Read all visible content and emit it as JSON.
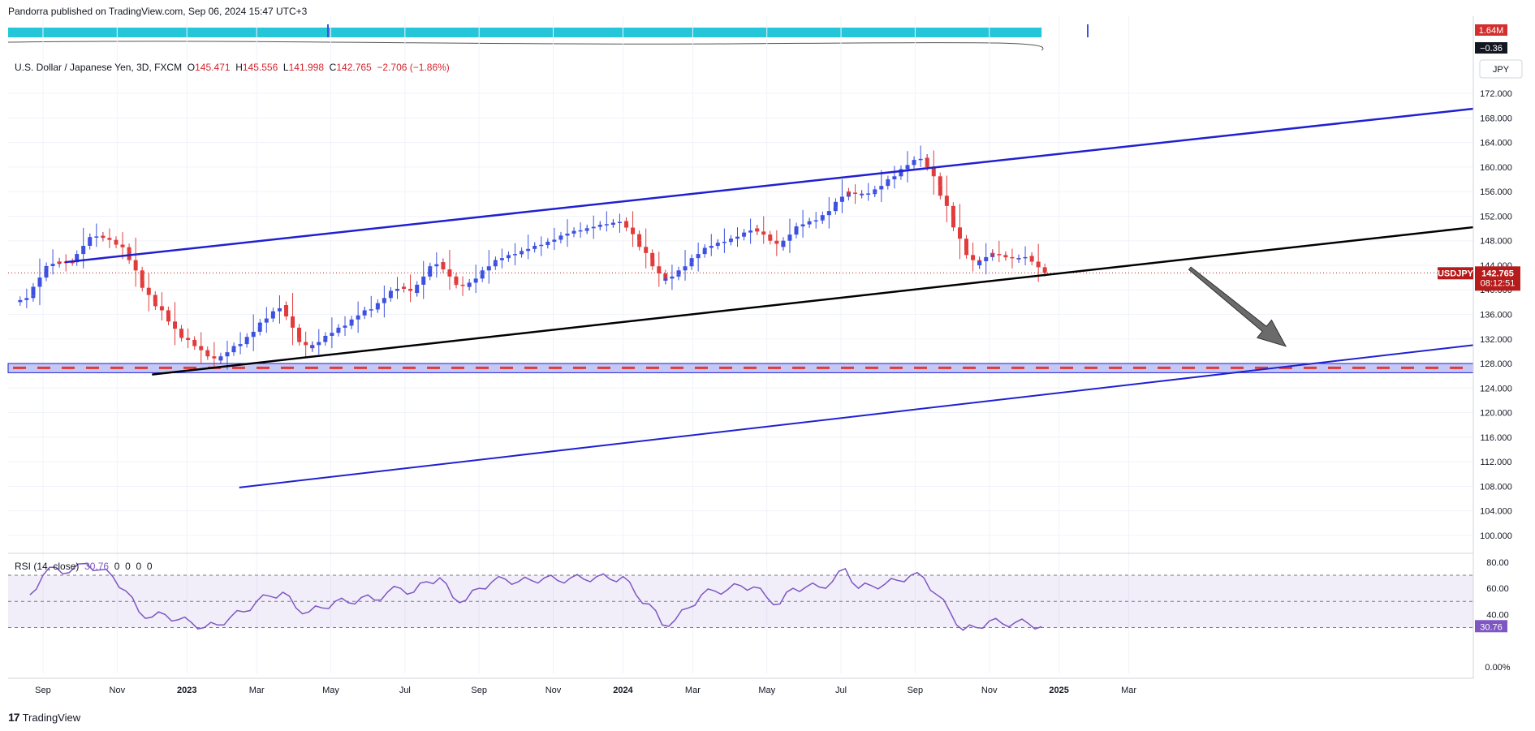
{
  "header": {
    "publisher": "Pandorra published on TradingView.com, Sep 06, 2024 15:47 UTC+3",
    "symbol_desc": "U.S. Dollar / Japanese Yen, 3D, FXCM",
    "ohlc": {
      "o_label": "O",
      "o": "145.471",
      "h_label": "H",
      "h": "145.556",
      "l_label": "L",
      "l": "141.998",
      "c_label": "C",
      "c": "142.765",
      "change": "−2.706 (−1.86%)"
    }
  },
  "volume_badges": {
    "volume": "1.64M",
    "osc": "−0.36"
  },
  "currency": "JPY",
  "price_badge": {
    "symbol": "USDJPY",
    "price": "142.765",
    "countdown": "08:12:51",
    "color": "#b71c1c"
  },
  "rsi": {
    "legend": "RSI (14, close)",
    "value": "30.76",
    "zeros": [
      "0",
      "0",
      "0",
      "0"
    ],
    "badge": "30.76",
    "color": "#7e57c2",
    "upper_band": 70,
    "middle_band": 50,
    "lower_band": 30
  },
  "footer": {
    "brand": "TradingView",
    "logo": "17"
  },
  "colors": {
    "bull": "#3d51e0",
    "bear": "#e23b3b",
    "channel": "#2020d0",
    "trend": "#000000",
    "support": "#e53935",
    "arrow": "#6b6b6b"
  },
  "chart_data": [
    {
      "type": "candlestick",
      "title": "",
      "ylabel": "JPY",
      "ylim": [
        98,
        174
      ],
      "y_ticks": [
        "100.000",
        "104.000",
        "108.000",
        "112.000",
        "116.000",
        "120.000",
        "124.000",
        "128.000",
        "132.000",
        "136.000",
        "140.000",
        "144.000",
        "148.000",
        "152.000",
        "156.000",
        "160.000",
        "164.000",
        "168.000",
        "172.000"
      ],
      "x_ticks": [
        "Sep",
        "Nov",
        "2023",
        "Mar",
        "May",
        "Jul",
        "Sep",
        "Nov",
        "2024",
        "Mar",
        "May",
        "Jul",
        "Sep",
        "Nov",
        "2025",
        "Mar"
      ],
      "close_series": [
        [
          2022.64,
          139.0
        ],
        [
          2022.67,
          143.5
        ],
        [
          2022.7,
          144.6
        ],
        [
          2022.73,
          144.5
        ],
        [
          2022.77,
          148.5
        ],
        [
          2022.8,
          148.8
        ],
        [
          2022.83,
          147.8
        ],
        [
          2022.86,
          146.5
        ],
        [
          2022.89,
          141.5
        ],
        [
          2022.92,
          138.0
        ],
        [
          2022.95,
          136.0
        ],
        [
          2022.98,
          132.5
        ],
        [
          2023.01,
          131.5
        ],
        [
          2023.04,
          129.5
        ],
        [
          2023.07,
          128.5
        ],
        [
          2023.1,
          130.5
        ],
        [
          2023.13,
          131.5
        ],
        [
          2023.16,
          134.0
        ],
        [
          2023.19,
          136.0
        ],
        [
          2023.22,
          137.5
        ],
        [
          2023.25,
          132.0
        ],
        [
          2023.28,
          130.5
        ],
        [
          2023.31,
          132.0
        ],
        [
          2023.34,
          133.5
        ],
        [
          2023.37,
          134.5
        ],
        [
          2023.4,
          136.5
        ],
        [
          2023.43,
          137.0
        ],
        [
          2023.46,
          139.5
        ],
        [
          2023.49,
          140.5
        ],
        [
          2023.52,
          139.5
        ],
        [
          2023.55,
          143.5
        ],
        [
          2023.58,
          144.5
        ],
        [
          2023.61,
          141.0
        ],
        [
          2023.64,
          140.5
        ],
        [
          2023.67,
          142.5
        ],
        [
          2023.7,
          144.5
        ],
        [
          2023.73,
          145.5
        ],
        [
          2023.76,
          146.0
        ],
        [
          2023.79,
          147.0
        ],
        [
          2023.82,
          147.5
        ],
        [
          2023.85,
          148.5
        ],
        [
          2023.88,
          149.5
        ],
        [
          2023.91,
          149.8
        ],
        [
          2023.94,
          150.5
        ],
        [
          2023.97,
          150.8
        ],
        [
          2024.0,
          151.2
        ],
        [
          2024.03,
          148.0
        ],
        [
          2024.06,
          145.0
        ],
        [
          2024.09,
          141.5
        ],
        [
          2024.12,
          142.5
        ],
        [
          2024.15,
          144.5
        ],
        [
          2024.18,
          146.5
        ],
        [
          2024.21,
          147.5
        ],
        [
          2024.24,
          148.0
        ],
        [
          2024.27,
          149.0
        ],
        [
          2024.3,
          150.0
        ],
        [
          2024.33,
          148.5
        ],
        [
          2024.36,
          147.0
        ],
        [
          2024.39,
          150.0
        ],
        [
          2024.42,
          151.0
        ],
        [
          2024.45,
          151.5
        ],
        [
          2024.48,
          153.5
        ],
        [
          2024.51,
          156.0
        ],
        [
          2024.54,
          155.5
        ],
        [
          2024.57,
          155.8
        ],
        [
          2024.6,
          157.5
        ],
        [
          2024.63,
          159.0
        ],
        [
          2024.66,
          161.0
        ],
        [
          2024.69,
          161.5
        ],
        [
          2024.72,
          157.0
        ],
        [
          2024.75,
          152.0
        ],
        [
          2024.78,
          146.5
        ],
        [
          2024.81,
          144.0
        ],
        [
          2024.84,
          146.0
        ],
        [
          2024.87,
          145.5
        ],
        [
          2024.9,
          145.0
        ],
        [
          2024.93,
          145.5
        ],
        [
          2024.96,
          142.77
        ]
      ],
      "annotations": {
        "upper_channel": [
          [
            2022.72,
            144.5
          ],
          [
            2027.2,
            169.5
          ]
        ],
        "mid_trendline": [
          [
            2022.92,
            126.2
          ],
          [
            2027.2,
            150.2
          ]
        ],
        "lower_channel": [
          [
            2023.12,
            107.8
          ],
          [
            2027.2,
            131.0
          ]
        ],
        "support_zone": [
          126.5,
          128.0
        ],
        "support_dash": 127.3,
        "price_line": 142.765,
        "arrow": {
          "from": [
            2025.3,
            143.5
          ],
          "to": [
            2025.52,
            130.8
          ]
        }
      }
    },
    {
      "type": "line",
      "title": "RSI (14, close)",
      "ylim": [
        -5,
        83
      ],
      "y_ticks": [
        "0.00%",
        "40.00",
        "60.00",
        "80.00"
      ],
      "series": [
        {
          "name": "RSI",
          "values": [
            [
              2022.64,
              55
            ],
            [
              2022.67,
              70
            ],
            [
              2022.7,
              76
            ],
            [
              2022.73,
              72
            ],
            [
              2022.77,
              79
            ],
            [
              2022.8,
              74
            ],
            [
              2022.83,
              69
            ],
            [
              2022.86,
              58
            ],
            [
              2022.89,
              42
            ],
            [
              2022.92,
              38
            ],
            [
              2022.95,
              40
            ],
            [
              2022.98,
              36
            ],
            [
              2023.01,
              34
            ],
            [
              2023.04,
              30
            ],
            [
              2023.07,
              32
            ],
            [
              2023.1,
              38
            ],
            [
              2023.13,
              42
            ],
            [
              2023.16,
              50
            ],
            [
              2023.19,
              54
            ],
            [
              2023.22,
              57
            ],
            [
              2023.25,
              45
            ],
            [
              2023.28,
              42
            ],
            [
              2023.31,
              45
            ],
            [
              2023.34,
              50
            ],
            [
              2023.37,
              49
            ],
            [
              2023.4,
              53
            ],
            [
              2023.43,
              51
            ],
            [
              2023.46,
              57
            ],
            [
              2023.49,
              60
            ],
            [
              2023.52,
              57
            ],
            [
              2023.55,
              65
            ],
            [
              2023.58,
              68
            ],
            [
              2023.61,
              53
            ],
            [
              2023.64,
              51
            ],
            [
              2023.67,
              60
            ],
            [
              2023.7,
              65
            ],
            [
              2023.73,
              67
            ],
            [
              2023.76,
              65
            ],
            [
              2023.79,
              66
            ],
            [
              2023.82,
              68
            ],
            [
              2023.85,
              66
            ],
            [
              2023.88,
              68
            ],
            [
              2023.91,
              67
            ],
            [
              2023.94,
              69
            ],
            [
              2023.97,
              67
            ],
            [
              2024.0,
              69
            ],
            [
              2024.03,
              55
            ],
            [
              2024.06,
              48
            ],
            [
              2024.09,
              32
            ],
            [
              2024.12,
              36
            ],
            [
              2024.15,
              45
            ],
            [
              2024.18,
              55
            ],
            [
              2024.21,
              58
            ],
            [
              2024.24,
              59
            ],
            [
              2024.27,
              62
            ],
            [
              2024.3,
              61
            ],
            [
              2024.33,
              53
            ],
            [
              2024.36,
              48
            ],
            [
              2024.39,
              60
            ],
            [
              2024.42,
              61
            ],
            [
              2024.45,
              61
            ],
            [
              2024.48,
              65
            ],
            [
              2024.51,
              75
            ],
            [
              2024.54,
              60
            ],
            [
              2024.57,
              62
            ],
            [
              2024.6,
              63
            ],
            [
              2024.63,
              66
            ],
            [
              2024.66,
              70
            ],
            [
              2024.69,
              68
            ],
            [
              2024.72,
              55
            ],
            [
              2024.75,
              42
            ],
            [
              2024.78,
              28
            ],
            [
              2024.81,
              30
            ],
            [
              2024.84,
              35
            ],
            [
              2024.87,
              33
            ],
            [
              2024.9,
              34
            ],
            [
              2024.93,
              33
            ],
            [
              2024.96,
              30.76
            ]
          ]
        }
      ]
    }
  ]
}
